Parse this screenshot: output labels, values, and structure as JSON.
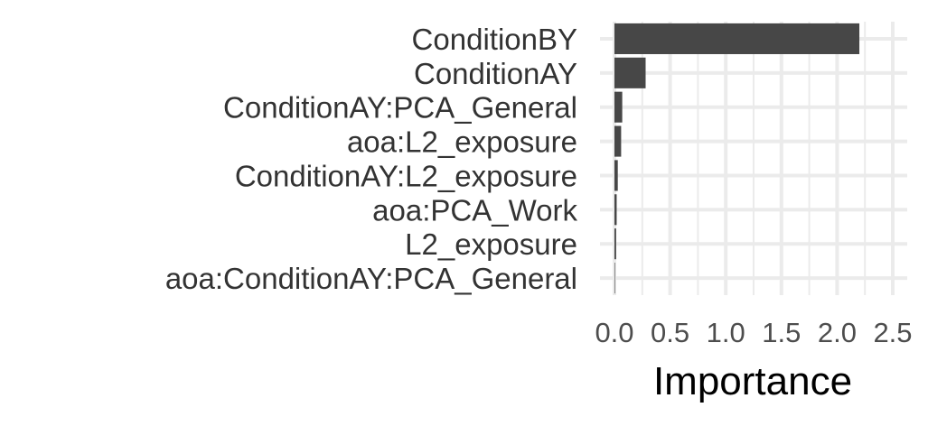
{
  "chart_data": {
    "type": "bar",
    "orientation": "horizontal",
    "categories": [
      "ConditionBY",
      "ConditionAY",
      "ConditionAY:PCA_General",
      "aoa:L2_exposure",
      "ConditionAY:L2_exposure",
      "aoa:PCA_Work",
      "L2_exposure",
      "aoa:ConditionAY:PCA_General"
    ],
    "values": [
      2.2,
      0.28,
      0.07,
      0.06,
      0.03,
      0.02,
      0.015,
      0.005
    ],
    "xlabel": "Importance",
    "ylabel": "",
    "xlim": [
      0,
      2.5
    ],
    "xticks": [
      0.0,
      0.5,
      1.0,
      1.5,
      2.0,
      2.5
    ],
    "xtick_labels": [
      "0.0",
      "0.5",
      "1.0",
      "1.5",
      "2.0",
      "2.5"
    ],
    "grid": true,
    "bar_color": "#474747",
    "grid_color": "#ebebeb",
    "background": "#ffffff"
  }
}
